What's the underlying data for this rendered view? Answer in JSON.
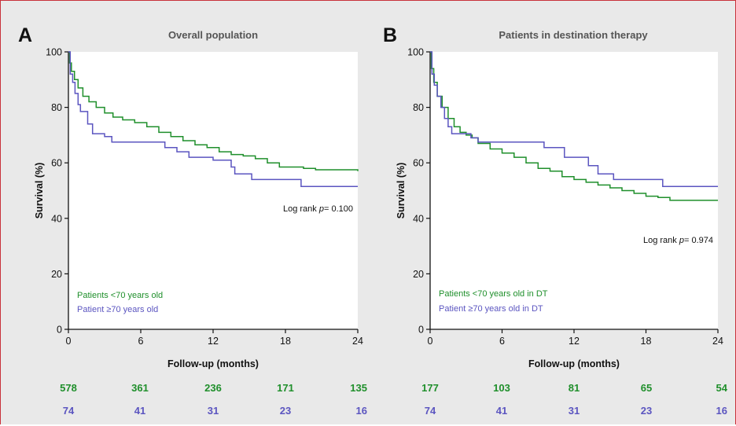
{
  "colors": {
    "group_young": "#1f8f2b",
    "group_old": "#5b55c0",
    "frame": "#c8323a",
    "background": "#e9e9e9"
  },
  "chart_data": [
    {
      "type": "line",
      "step": true,
      "panel_letter": "A",
      "title": "Overall population",
      "xlabel": "Follow-up (months)",
      "ylabel": "Survival (%)",
      "xlim": [
        0,
        24
      ],
      "ylim": [
        0,
        100
      ],
      "x_ticks": [
        0,
        6,
        12,
        18,
        24
      ],
      "y_ticks": [
        0,
        20,
        40,
        60,
        80,
        100
      ],
      "grid": false,
      "annotation": {
        "prefix": "Log rank ",
        "italic": "p",
        "suffix": "= 0.100"
      },
      "legend_position": "bottom-left",
      "series": [
        {
          "name": "Patients <70 years old",
          "color_key": "group_young",
          "points": [
            [
              0,
              100
            ],
            [
              0.1,
              96
            ],
            [
              0.25,
              93
            ],
            [
              0.5,
              90
            ],
            [
              0.8,
              87
            ],
            [
              1.2,
              84
            ],
            [
              1.7,
              82
            ],
            [
              2.3,
              80
            ],
            [
              3,
              78
            ],
            [
              3.7,
              76.5
            ],
            [
              4.5,
              75.5
            ],
            [
              5.5,
              74.5
            ],
            [
              6.5,
              73
            ],
            [
              7.5,
              71
            ],
            [
              8.5,
              69.5
            ],
            [
              9.5,
              68
            ],
            [
              10.5,
              66.5
            ],
            [
              11.5,
              65.5
            ],
            [
              12.5,
              64
            ],
            [
              13.5,
              63
            ],
            [
              14.5,
              62.5
            ],
            [
              15.5,
              61.5
            ],
            [
              16.5,
              60
            ],
            [
              17.5,
              58.5
            ],
            [
              18.5,
              58.5
            ],
            [
              19.5,
              58
            ],
            [
              20.5,
              57.5
            ],
            [
              22,
              57.5
            ],
            [
              24,
              57
            ]
          ]
        },
        {
          "name": "Patient ≥70 years old",
          "color_key": "group_old",
          "points": [
            [
              0,
              100
            ],
            [
              0.15,
              92
            ],
            [
              0.35,
              89
            ],
            [
              0.55,
              85
            ],
            [
              0.8,
              81
            ],
            [
              1.0,
              78.5
            ],
            [
              1.6,
              74
            ],
            [
              2.0,
              70.5
            ],
            [
              3.0,
              69.5
            ],
            [
              3.6,
              67.5
            ],
            [
              7.0,
              67.5
            ],
            [
              8.0,
              65.5
            ],
            [
              9.0,
              64
            ],
            [
              10,
              62
            ],
            [
              12.0,
              61
            ],
            [
              13.5,
              58.5
            ],
            [
              13.8,
              56
            ],
            [
              15,
              56
            ],
            [
              15.2,
              54
            ],
            [
              19,
              54
            ],
            [
              19.3,
              51.5
            ],
            [
              24,
              51.5
            ]
          ]
        }
      ],
      "at_risk": [
        {
          "color_key": "group_young",
          "values": [
            "578",
            "361",
            "236",
            "171",
            "135"
          ]
        },
        {
          "color_key": "group_old",
          "values": [
            "74",
            "41",
            "31",
            "23",
            "16"
          ]
        }
      ]
    },
    {
      "type": "line",
      "step": true,
      "panel_letter": "B",
      "title": "Patients in destination therapy",
      "xlabel": "Follow-up (months)",
      "ylabel": "Survival (%)",
      "xlim": [
        0,
        24
      ],
      "ylim": [
        0,
        100
      ],
      "x_ticks": [
        0,
        6,
        12,
        18,
        24
      ],
      "y_ticks": [
        0,
        20,
        40,
        60,
        80,
        100
      ],
      "grid": false,
      "annotation": {
        "prefix": "Log rank ",
        "italic": "p",
        "suffix": "= 0.974"
      },
      "legend_position": "bottom-left",
      "series": [
        {
          "name": "Patients <70 years old in DT",
          "color_key": "group_young",
          "points": [
            [
              0,
              100
            ],
            [
              0.1,
              94
            ],
            [
              0.3,
              89
            ],
            [
              0.6,
              84
            ],
            [
              1.0,
              80
            ],
            [
              1.5,
              76
            ],
            [
              2,
              73
            ],
            [
              2.5,
              71
            ],
            [
              3,
              70
            ],
            [
              3.5,
              69
            ],
            [
              4,
              67
            ],
            [
              5,
              65
            ],
            [
              6,
              63.5
            ],
            [
              7,
              62
            ],
            [
              8,
              60
            ],
            [
              9,
              58
            ],
            [
              10,
              57
            ],
            [
              11,
              55
            ],
            [
              12,
              54
            ],
            [
              13,
              53
            ],
            [
              14,
              52
            ],
            [
              15,
              51
            ],
            [
              16,
              50
            ],
            [
              17,
              49
            ],
            [
              18,
              48
            ],
            [
              19,
              47.5
            ],
            [
              20,
              46.5
            ],
            [
              24,
              46.5
            ]
          ]
        },
        {
          "name": "Patient ≥70 years old in DT",
          "color_key": "group_old",
          "points": [
            [
              0,
              100
            ],
            [
              0.15,
              92
            ],
            [
              0.35,
              88
            ],
            [
              0.6,
              84
            ],
            [
              0.9,
              80
            ],
            [
              1.2,
              76
            ],
            [
              1.5,
              73
            ],
            [
              1.8,
              70.5
            ],
            [
              3,
              70.5
            ],
            [
              3.4,
              69
            ],
            [
              4,
              67.5
            ],
            [
              9,
              67.5
            ],
            [
              9.5,
              65.5
            ],
            [
              11,
              65.5
            ],
            [
              11.2,
              62
            ],
            [
              13,
              62
            ],
            [
              13.2,
              59
            ],
            [
              13.8,
              59
            ],
            [
              14,
              56
            ],
            [
              15,
              56
            ],
            [
              15.3,
              54
            ],
            [
              19.2,
              54
            ],
            [
              19.4,
              51.5
            ],
            [
              24,
              51.5
            ]
          ]
        }
      ],
      "at_risk": [
        {
          "color_key": "group_young",
          "values": [
            "177",
            "103",
            "81",
            "65",
            "54"
          ]
        },
        {
          "color_key": "group_old",
          "values": [
            "74",
            "41",
            "31",
            "23",
            "16"
          ]
        }
      ]
    }
  ]
}
